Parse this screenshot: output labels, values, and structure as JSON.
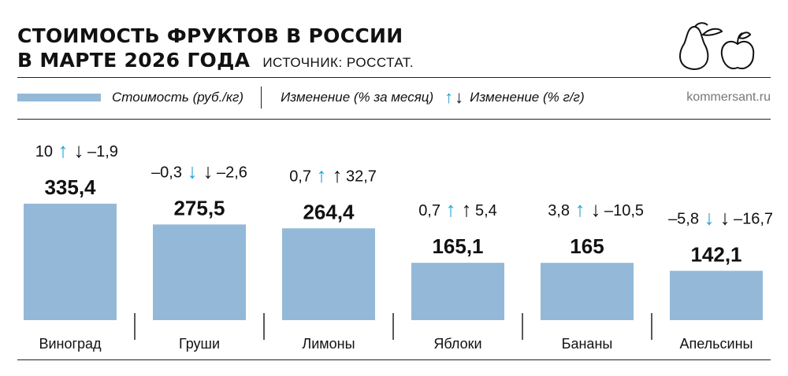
{
  "header": {
    "title_line1": "СТОИМОСТЬ ФРУКТОВ В РОССИИ",
    "title_line2": "В МАРТЕ 2026 ГОДА",
    "source": "ИСТОЧНИК: РОССТАТ."
  },
  "legend": {
    "price_label": "Стоимость (руб./кг)",
    "mom_label": "Изменение (% за месяц)",
    "yoy_label": "Изменение (% г/г)",
    "site": "kommersant.ru"
  },
  "icons": [
    "pear-icon",
    "apple-icon"
  ],
  "colors": {
    "bar": "#94b9d8",
    "up_arrow": "#1ea0d9",
    "down_arrow": "#111111",
    "text": "#111111"
  },
  "chart_data": {
    "type": "bar",
    "categories": [
      "Виноград",
      "Груши",
      "Лимоны",
      "Яблоки",
      "Бананы",
      "Апельсины"
    ],
    "values": [
      335.4,
      275.5,
      264.4,
      165.1,
      165,
      142.1
    ],
    "value_labels": [
      "335,4",
      "275,5",
      "264,4",
      "165,1",
      "165",
      "142,1"
    ],
    "change_month": [
      "10",
      "–0,3",
      "0,7",
      "0,7",
      "3,8",
      "–5,8"
    ],
    "change_month_dir": [
      "up",
      "down",
      "up",
      "up",
      "up",
      "down"
    ],
    "change_year": [
      "–1,9",
      "–2,6",
      "32,7",
      "5,4",
      "–10,5",
      "–16,7"
    ],
    "change_year_dir": [
      "down",
      "down",
      "up",
      "up",
      "down",
      "down"
    ],
    "title": "СТОИМОСТЬ ФРУКТОВ В РОССИИ В МАРТЕ 2026 ГОДА",
    "ylabel": "Стоимость (руб./кг)",
    "ylim": [
      0,
      340
    ],
    "grid": false,
    "legend_position": "top"
  }
}
